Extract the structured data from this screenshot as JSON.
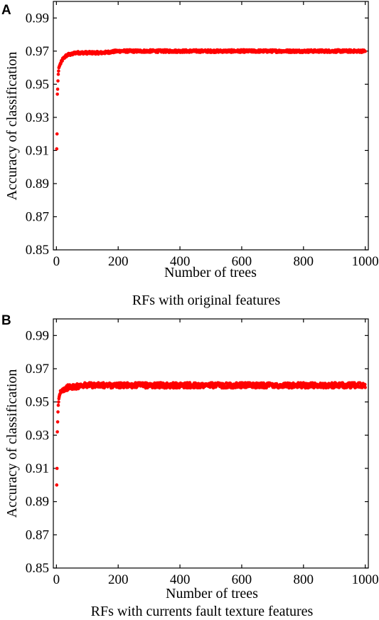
{
  "chart_data": [
    {
      "type": "scatter",
      "panel_label": "A",
      "xlabel": "Number of trees",
      "ylabel": "Accuracy of classification",
      "caption": "RFs with original features",
      "xlim": [
        -10,
        1010
      ],
      "ylim": [
        0.85,
        1.0
      ],
      "x_ticks": [
        0,
        200,
        400,
        600,
        800,
        1000
      ],
      "x_tick_labels": [
        "0",
        "200",
        "400",
        "600",
        "800",
        "1000"
      ],
      "y_ticks": [
        0.85,
        0.87,
        0.89,
        0.91,
        0.93,
        0.95,
        0.97,
        0.99
      ],
      "y_tick_labels": [
        "0.85",
        "0.87",
        "0.89",
        "0.91",
        "0.93",
        "0.95",
        "0.97",
        "0.99"
      ],
      "grid": false,
      "marker_color": "#ff0000",
      "series": [
        {
          "x": [
            1,
            2,
            3,
            4,
            5,
            6,
            7,
            8,
            10,
            12,
            15,
            20,
            25,
            30,
            40,
            50,
            60,
            80,
            100,
            150,
            200,
            300,
            400,
            500,
            600,
            700,
            800,
            900,
            1000
          ],
          "values": [
            0.911,
            0.92,
            0.944,
            0.947,
            0.952,
            0.956,
            0.958,
            0.96,
            0.961,
            0.962,
            0.963,
            0.965,
            0.966,
            0.967,
            0.968,
            0.968,
            0.969,
            0.969,
            0.969,
            0.969,
            0.97,
            0.97,
            0.97,
            0.97,
            0.97,
            0.97,
            0.97,
            0.97,
            0.97
          ]
        }
      ]
    },
    {
      "type": "scatter",
      "panel_label": "B",
      "xlabel": "Number of trees",
      "ylabel": "Accuracy of classification",
      "caption": "RFs with currents fault texture features",
      "xlim": [
        -10,
        1010
      ],
      "ylim": [
        0.85,
        1.0
      ],
      "x_ticks": [
        0,
        200,
        400,
        600,
        800,
        1000
      ],
      "x_tick_labels": [
        "0",
        "200",
        "400",
        "600",
        "800",
        "1000"
      ],
      "y_ticks": [
        0.85,
        0.87,
        0.89,
        0.91,
        0.93,
        0.95,
        0.97,
        0.99
      ],
      "y_tick_labels": [
        "0.85",
        "0.87",
        "0.89",
        "0.91",
        "0.93",
        "0.95",
        "0.97",
        "0.99"
      ],
      "grid": false,
      "marker_color": "#ff0000",
      "series": [
        {
          "x": [
            1,
            2,
            3,
            4,
            5,
            6,
            7,
            8,
            10,
            12,
            15,
            20,
            25,
            30,
            40,
            50,
            60,
            80,
            100,
            150,
            200,
            300,
            400,
            500,
            600,
            700,
            800,
            900,
            1000
          ],
          "values": [
            0.9,
            0.91,
            0.932,
            0.938,
            0.944,
            0.948,
            0.95,
            0.952,
            0.954,
            0.955,
            0.956,
            0.957,
            0.958,
            0.958,
            0.959,
            0.959,
            0.959,
            0.96,
            0.96,
            0.96,
            0.96,
            0.96,
            0.96,
            0.96,
            0.96,
            0.96,
            0.96,
            0.96,
            0.96
          ]
        }
      ]
    }
  ]
}
